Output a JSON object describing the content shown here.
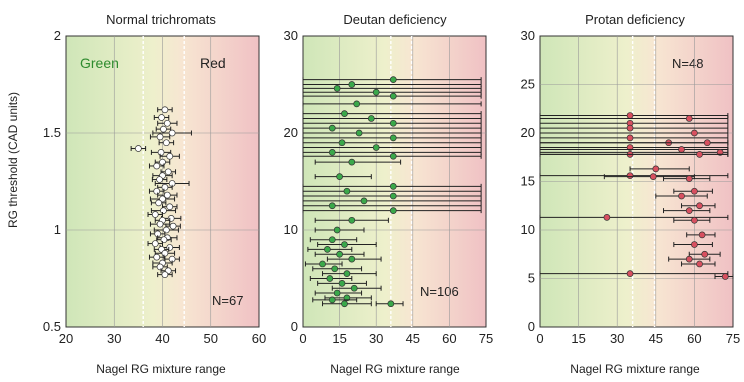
{
  "ylabel": "RG threshold (CAD units)",
  "colors": {
    "green_zone": "#cfe6b8",
    "red_zone": "#f0c1c4",
    "mid_zone": "#f3f0d8",
    "green_text": "#2e8b2e",
    "normal_marker": "#ffffff",
    "deutan_marker": "#3aa84a",
    "protan_marker": "#d85060",
    "errorbar": "#222222",
    "ref_line": "#ffffff"
  },
  "chart_data": [
    {
      "type": "scatter",
      "title": "Normal trichromats",
      "xlabel": "Nagel RG mixture range",
      "ylabel": "RG threshold (CAD units)",
      "xlim": [
        20,
        60
      ],
      "ylim": [
        0.5,
        2
      ],
      "xticks": [
        "20",
        "30",
        "40",
        "50",
        "60"
      ],
      "yticks": [
        "0.5",
        "1",
        "1.5",
        "2"
      ],
      "xtick_values": [
        20,
        30,
        40,
        50,
        60
      ],
      "ytick_values": [
        0.5,
        1,
        1.5,
        2
      ],
      "ref_lines": [
        36,
        44.5
      ],
      "zone_labels": {
        "left": "Green",
        "right": "Red"
      },
      "annotation": "N=67",
      "marker": "normal",
      "points": [
        {
          "x": 40.5,
          "y": 1.62,
          "err": 1.5
        },
        {
          "x": 39.8,
          "y": 1.58,
          "err": 1.5
        },
        {
          "x": 41.0,
          "y": 1.55,
          "err": 2.0
        },
        {
          "x": 40.2,
          "y": 1.52,
          "err": 1.5
        },
        {
          "x": 42.0,
          "y": 1.5,
          "err": 4.0
        },
        {
          "x": 39.5,
          "y": 1.48,
          "err": 2.0
        },
        {
          "x": 35.0,
          "y": 1.42,
          "err": 1.5
        },
        {
          "x": 40.8,
          "y": 1.45,
          "err": 1.5
        },
        {
          "x": 39.7,
          "y": 1.4,
          "err": 2.0
        },
        {
          "x": 41.5,
          "y": 1.38,
          "err": 2.0
        },
        {
          "x": 40.0,
          "y": 1.35,
          "err": 1.5
        },
        {
          "x": 38.8,
          "y": 1.33,
          "err": 1.5
        },
        {
          "x": 41.2,
          "y": 1.3,
          "err": 1.5
        },
        {
          "x": 40.0,
          "y": 1.28,
          "err": 2.0
        },
        {
          "x": 39.4,
          "y": 1.26,
          "err": 1.5
        },
        {
          "x": 42.0,
          "y": 1.24,
          "err": 3.5
        },
        {
          "x": 40.5,
          "y": 1.22,
          "err": 1.5
        },
        {
          "x": 38.8,
          "y": 1.2,
          "err": 1.5
        },
        {
          "x": 41.0,
          "y": 1.18,
          "err": 2.0
        },
        {
          "x": 40.0,
          "y": 1.16,
          "err": 2.5
        },
        {
          "x": 39.2,
          "y": 1.14,
          "err": 1.5
        },
        {
          "x": 41.5,
          "y": 1.12,
          "err": 1.5
        },
        {
          "x": 40.2,
          "y": 1.1,
          "err": 2.5
        },
        {
          "x": 38.5,
          "y": 1.08,
          "err": 1.5
        },
        {
          "x": 41.8,
          "y": 1.06,
          "err": 2.0
        },
        {
          "x": 40.0,
          "y": 1.05,
          "err": 1.5
        },
        {
          "x": 39.5,
          "y": 1.03,
          "err": 2.0
        },
        {
          "x": 42.2,
          "y": 1.02,
          "err": 1.5
        },
        {
          "x": 40.8,
          "y": 1.0,
          "err": 2.5
        },
        {
          "x": 39.0,
          "y": 0.98,
          "err": 1.5
        },
        {
          "x": 41.0,
          "y": 0.96,
          "err": 2.0
        },
        {
          "x": 40.3,
          "y": 0.95,
          "err": 1.5
        },
        {
          "x": 38.5,
          "y": 0.93,
          "err": 1.5
        },
        {
          "x": 41.5,
          "y": 0.91,
          "err": 2.0
        },
        {
          "x": 39.8,
          "y": 0.9,
          "err": 1.5
        },
        {
          "x": 40.5,
          "y": 0.88,
          "err": 2.0
        },
        {
          "x": 38.8,
          "y": 0.86,
          "err": 1.5
        },
        {
          "x": 42.0,
          "y": 0.85,
          "err": 1.5
        },
        {
          "x": 40.0,
          "y": 0.83,
          "err": 2.0
        },
        {
          "x": 39.5,
          "y": 0.81,
          "err": 1.5
        },
        {
          "x": 41.2,
          "y": 0.79,
          "err": 1.5
        },
        {
          "x": 40.5,
          "y": 0.77,
          "err": 1.5
        }
      ]
    },
    {
      "type": "scatter",
      "title": "Deutan deficiency",
      "xlabel": "Nagel RG mixture range",
      "xlim": [
        0,
        75
      ],
      "ylim": [
        0,
        30
      ],
      "xticks": [
        "0",
        "15",
        "30",
        "45",
        "60",
        "75"
      ],
      "yticks": [
        "0",
        "10",
        "20",
        "30"
      ],
      "xtick_values": [
        0,
        15,
        30,
        45,
        60,
        75
      ],
      "ytick_values": [
        0,
        10,
        20,
        30
      ],
      "ref_lines": [
        36,
        44.5
      ],
      "annotation": "N=106",
      "marker": "deutan",
      "points": [
        {
          "x": 37,
          "y": 25.5,
          "xmin": 0,
          "xmax": 73
        },
        {
          "x": 20,
          "y": 25.0,
          "xmin": 0,
          "xmax": 73
        },
        {
          "x": 14,
          "y": 24.6,
          "xmin": 0,
          "xmax": 73
        },
        {
          "x": 30,
          "y": 24.2,
          "xmin": 0,
          "xmax": 73
        },
        {
          "x": 37,
          "y": 23.8,
          "xmin": 0,
          "xmax": 73
        },
        {
          "x": 22,
          "y": 23.0,
          "xmin": 0,
          "xmax": 73
        },
        {
          "x": 17,
          "y": 22.0,
          "xmin": 0,
          "xmax": 73
        },
        {
          "x": 28,
          "y": 21.5,
          "xmin": 0,
          "xmax": 73
        },
        {
          "x": 37,
          "y": 21.0,
          "xmin": 0,
          "xmax": 73
        },
        {
          "x": 12,
          "y": 20.5,
          "xmin": 0,
          "xmax": 73
        },
        {
          "x": 23,
          "y": 20.0,
          "xmin": 0,
          "xmax": 73
        },
        {
          "x": 37,
          "y": 19.5,
          "xmin": 0,
          "xmax": 73
        },
        {
          "x": 16,
          "y": 19.0,
          "xmin": 0,
          "xmax": 73
        },
        {
          "x": 30,
          "y": 18.5,
          "xmin": 0,
          "xmax": 73
        },
        {
          "x": 12,
          "y": 18.0,
          "xmin": 0,
          "xmax": 73
        },
        {
          "x": 37,
          "y": 17.6,
          "xmin": 0,
          "xmax": 73
        },
        {
          "x": 20,
          "y": 17.0,
          "xmin": 5,
          "xmax": 40
        },
        {
          "x": 15,
          "y": 15.5,
          "xmin": 5,
          "xmax": 28
        },
        {
          "x": 37,
          "y": 14.5,
          "xmin": 0,
          "xmax": 73
        },
        {
          "x": 18,
          "y": 14.0,
          "xmin": 0,
          "xmax": 73
        },
        {
          "x": 37,
          "y": 13.5,
          "xmin": 0,
          "xmax": 73
        },
        {
          "x": 25,
          "y": 13.0,
          "xmin": 0,
          "xmax": 73
        },
        {
          "x": 12,
          "y": 12.5,
          "xmin": 0,
          "xmax": 73
        },
        {
          "x": 37,
          "y": 12.0,
          "xmin": 0,
          "xmax": 73
        },
        {
          "x": 20,
          "y": 11.0,
          "xmin": 5,
          "xmax": 35
        },
        {
          "x": 14,
          "y": 10.0,
          "xmin": 5,
          "xmax": 25
        },
        {
          "x": 12,
          "y": 9.0,
          "xmin": 3,
          "xmax": 22
        },
        {
          "x": 17,
          "y": 8.5,
          "xmin": 6,
          "xmax": 30
        },
        {
          "x": 10,
          "y": 8.0,
          "xmin": 2,
          "xmax": 20
        },
        {
          "x": 15,
          "y": 7.5,
          "xmin": 5,
          "xmax": 25
        },
        {
          "x": 20,
          "y": 7.0,
          "xmin": 10,
          "xmax": 32
        },
        {
          "x": 8,
          "y": 6.5,
          "xmin": 1,
          "xmax": 16
        },
        {
          "x": 13,
          "y": 6.0,
          "xmin": 4,
          "xmax": 24
        },
        {
          "x": 18,
          "y": 5.5,
          "xmin": 8,
          "xmax": 30
        },
        {
          "x": 11,
          "y": 5.0,
          "xmin": 3,
          "xmax": 20
        },
        {
          "x": 16,
          "y": 4.5,
          "xmin": 6,
          "xmax": 26
        },
        {
          "x": 21,
          "y": 4.0,
          "xmin": 12,
          "xmax": 32
        },
        {
          "x": 14,
          "y": 3.5,
          "xmin": 5,
          "xmax": 24
        },
        {
          "x": 18,
          "y": 3.0,
          "xmin": 9,
          "xmax": 28
        },
        {
          "x": 12,
          "y": 2.8,
          "xmin": 4,
          "xmax": 22
        },
        {
          "x": 17,
          "y": 2.4,
          "xmin": 8,
          "xmax": 28
        },
        {
          "x": 36,
          "y": 2.4,
          "xmin": 30,
          "xmax": 41
        }
      ]
    },
    {
      "type": "scatter",
      "title": "Protan deficiency",
      "xlabel": "Nagel RG mixture range",
      "xlim": [
        0,
        75
      ],
      "ylim": [
        0,
        30
      ],
      "xticks": [
        "0",
        "15",
        "30",
        "45",
        "60",
        "75"
      ],
      "yticks": [
        "0",
        "5",
        "10",
        "15",
        "20",
        "25",
        "30"
      ],
      "xtick_values": [
        0,
        15,
        30,
        45,
        60,
        75
      ],
      "ytick_values": [
        0,
        5,
        10,
        15,
        20,
        25,
        30
      ],
      "ref_lines": [
        36,
        44.5
      ],
      "annotation": "N=48",
      "marker": "protan",
      "points": [
        {
          "x": 35,
          "y": 21.8,
          "xmin": 0,
          "xmax": 73
        },
        {
          "x": 58,
          "y": 21.5,
          "xmin": 0,
          "xmax": 73
        },
        {
          "x": 35,
          "y": 21.0,
          "xmin": 0,
          "xmax": 73
        },
        {
          "x": 35,
          "y": 20.5,
          "xmin": 0,
          "xmax": 73
        },
        {
          "x": 60,
          "y": 20.0,
          "xmin": 0,
          "xmax": 73
        },
        {
          "x": 35,
          "y": 19.5,
          "xmin": 0,
          "xmax": 73
        },
        {
          "x": 50,
          "y": 19.0,
          "xmin": 0,
          "xmax": 73
        },
        {
          "x": 65,
          "y": 19.0,
          "xmin": 0,
          "xmax": 73
        },
        {
          "x": 35,
          "y": 18.5,
          "xmin": 0,
          "xmax": 73
        },
        {
          "x": 55,
          "y": 18.3,
          "xmin": 0,
          "xmax": 73
        },
        {
          "x": 70,
          "y": 18.0,
          "xmin": 0,
          "xmax": 73
        },
        {
          "x": 35,
          "y": 17.8,
          "xmin": 0,
          "xmax": 73
        },
        {
          "x": 62,
          "y": 17.8,
          "xmin": 0,
          "xmax": 73
        },
        {
          "x": 45,
          "y": 16.3,
          "xmin": 35,
          "xmax": 58
        },
        {
          "x": 35,
          "y": 15.6,
          "xmin": 0,
          "xmax": 73
        },
        {
          "x": 44,
          "y": 15.5,
          "xmin": 25,
          "xmax": 60
        },
        {
          "x": 58,
          "y": 15.3,
          "xmin": 48,
          "xmax": 66
        },
        {
          "x": 60,
          "y": 14.0,
          "xmin": 52,
          "xmax": 67
        },
        {
          "x": 55,
          "y": 13.5,
          "xmin": 45,
          "xmax": 65
        },
        {
          "x": 62,
          "y": 12.5,
          "xmin": 55,
          "xmax": 68
        },
        {
          "x": 58,
          "y": 12.0,
          "xmin": 48,
          "xmax": 66
        },
        {
          "x": 26,
          "y": 11.3,
          "xmin": 0,
          "xmax": 73
        },
        {
          "x": 60,
          "y": 11.0,
          "xmin": 52,
          "xmax": 66
        },
        {
          "x": 63,
          "y": 9.5,
          "xmin": 57,
          "xmax": 68
        },
        {
          "x": 60,
          "y": 8.5,
          "xmin": 52,
          "xmax": 67
        },
        {
          "x": 64,
          "y": 7.5,
          "xmin": 58,
          "xmax": 70
        },
        {
          "x": 58,
          "y": 7.0,
          "xmin": 50,
          "xmax": 66
        },
        {
          "x": 62,
          "y": 6.5,
          "xmin": 55,
          "xmax": 68
        },
        {
          "x": 35,
          "y": 5.5,
          "xmin": 0,
          "xmax": 73
        },
        {
          "x": 72,
          "y": 5.2,
          "xmin": 68,
          "xmax": 75
        }
      ]
    }
  ]
}
